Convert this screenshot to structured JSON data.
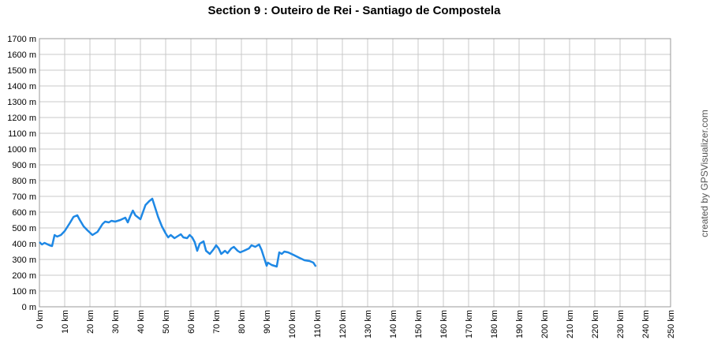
{
  "chart_data": {
    "type": "line",
    "title": "Section 9 : Outeiro de Rei - Santiago de Compostela",
    "credit": "created by GPSVisualizer.com",
    "xlim": [
      0,
      250
    ],
    "ylim": [
      0,
      1700
    ],
    "grid": true,
    "xticks": [
      {
        "value": 0,
        "label": "0 km"
      },
      {
        "value": 10,
        "label": "10 km"
      },
      {
        "value": 20,
        "label": "20 km"
      },
      {
        "value": 30,
        "label": "30 km"
      },
      {
        "value": 40,
        "label": "40 km"
      },
      {
        "value": 50,
        "label": "50 km"
      },
      {
        "value": 60,
        "label": "60 km"
      },
      {
        "value": 70,
        "label": "70 km"
      },
      {
        "value": 80,
        "label": "80 km"
      },
      {
        "value": 90,
        "label": "90 km"
      },
      {
        "value": 100,
        "label": "100 km"
      },
      {
        "value": 110,
        "label": "110 km"
      },
      {
        "value": 120,
        "label": "120 km"
      },
      {
        "value": 130,
        "label": "130 km"
      },
      {
        "value": 140,
        "label": "140 km"
      },
      {
        "value": 150,
        "label": "150 km"
      },
      {
        "value": 160,
        "label": "160 km"
      },
      {
        "value": 170,
        "label": "170 km"
      },
      {
        "value": 180,
        "label": "180 km"
      },
      {
        "value": 190,
        "label": "190 km"
      },
      {
        "value": 200,
        "label": "200 km"
      },
      {
        "value": 210,
        "label": "210 km"
      },
      {
        "value": 220,
        "label": "220 km"
      },
      {
        "value": 230,
        "label": "230 km"
      },
      {
        "value": 240,
        "label": "240 km"
      },
      {
        "value": 250,
        "label": "250 km"
      }
    ],
    "yticks": [
      {
        "value": 0,
        "label": "0 m"
      },
      {
        "value": 100,
        "label": "100 m"
      },
      {
        "value": 200,
        "label": "200 m"
      },
      {
        "value": 300,
        "label": "300 m"
      },
      {
        "value": 400,
        "label": "400 m"
      },
      {
        "value": 500,
        "label": "500 m"
      },
      {
        "value": 600,
        "label": "600 m"
      },
      {
        "value": 700,
        "label": "700 m"
      },
      {
        "value": 800,
        "label": "800 m"
      },
      {
        "value": 900,
        "label": "900 m"
      },
      {
        "value": 1000,
        "label": "1000 m"
      },
      {
        "value": 1100,
        "label": "1100 m"
      },
      {
        "value": 1200,
        "label": "1200 m"
      },
      {
        "value": 1300,
        "label": "1300 m"
      },
      {
        "value": 1400,
        "label": "1400 m"
      },
      {
        "value": 1500,
        "label": "1500 m"
      },
      {
        "value": 1600,
        "label": "1600 m"
      },
      {
        "value": 1700,
        "label": "1700 m"
      }
    ],
    "series": [
      {
        "color": "#1e88e5",
        "x": [
          0,
          1,
          2,
          4,
          5,
          6,
          7,
          8.5,
          10,
          12,
          13.5,
          15,
          16,
          17.5,
          19,
          21,
          23,
          25,
          26,
          27.5,
          28.5,
          30,
          32,
          34,
          35,
          36,
          37,
          38,
          40,
          41,
          42,
          43.5,
          44.7,
          46,
          47,
          48.5,
          50,
          51,
          52,
          53.5,
          55,
          56,
          57,
          58.5,
          59.5,
          60.5,
          61.5,
          62.5,
          63.5,
          65,
          66,
          67.5,
          69,
          70,
          71,
          72,
          73.5,
          74.5,
          76,
          77,
          78.5,
          79.5,
          81,
          83,
          84,
          85.5,
          87,
          88,
          89,
          90,
          90.5,
          92,
          94,
          95,
          96,
          97,
          98.5,
          100.5,
          103,
          105,
          107,
          108.5,
          109.5
        ],
        "values": [
          410,
          395,
          405,
          390,
          385,
          455,
          445,
          455,
          480,
          530,
          570,
          580,
          550,
          510,
          485,
          455,
          475,
          525,
          540,
          535,
          545,
          540,
          550,
          565,
          535,
          575,
          610,
          580,
          555,
          600,
          645,
          670,
          685,
          620,
          570,
          510,
          465,
          440,
          455,
          435,
          450,
          460,
          440,
          435,
          455,
          440,
          410,
          355,
          400,
          415,
          355,
          335,
          365,
          390,
          370,
          335,
          355,
          340,
          370,
          380,
          355,
          345,
          355,
          370,
          390,
          380,
          395,
          360,
          310,
          260,
          280,
          265,
          255,
          345,
          335,
          350,
          345,
          330,
          310,
          295,
          290,
          280,
          255
        ]
      }
    ]
  }
}
